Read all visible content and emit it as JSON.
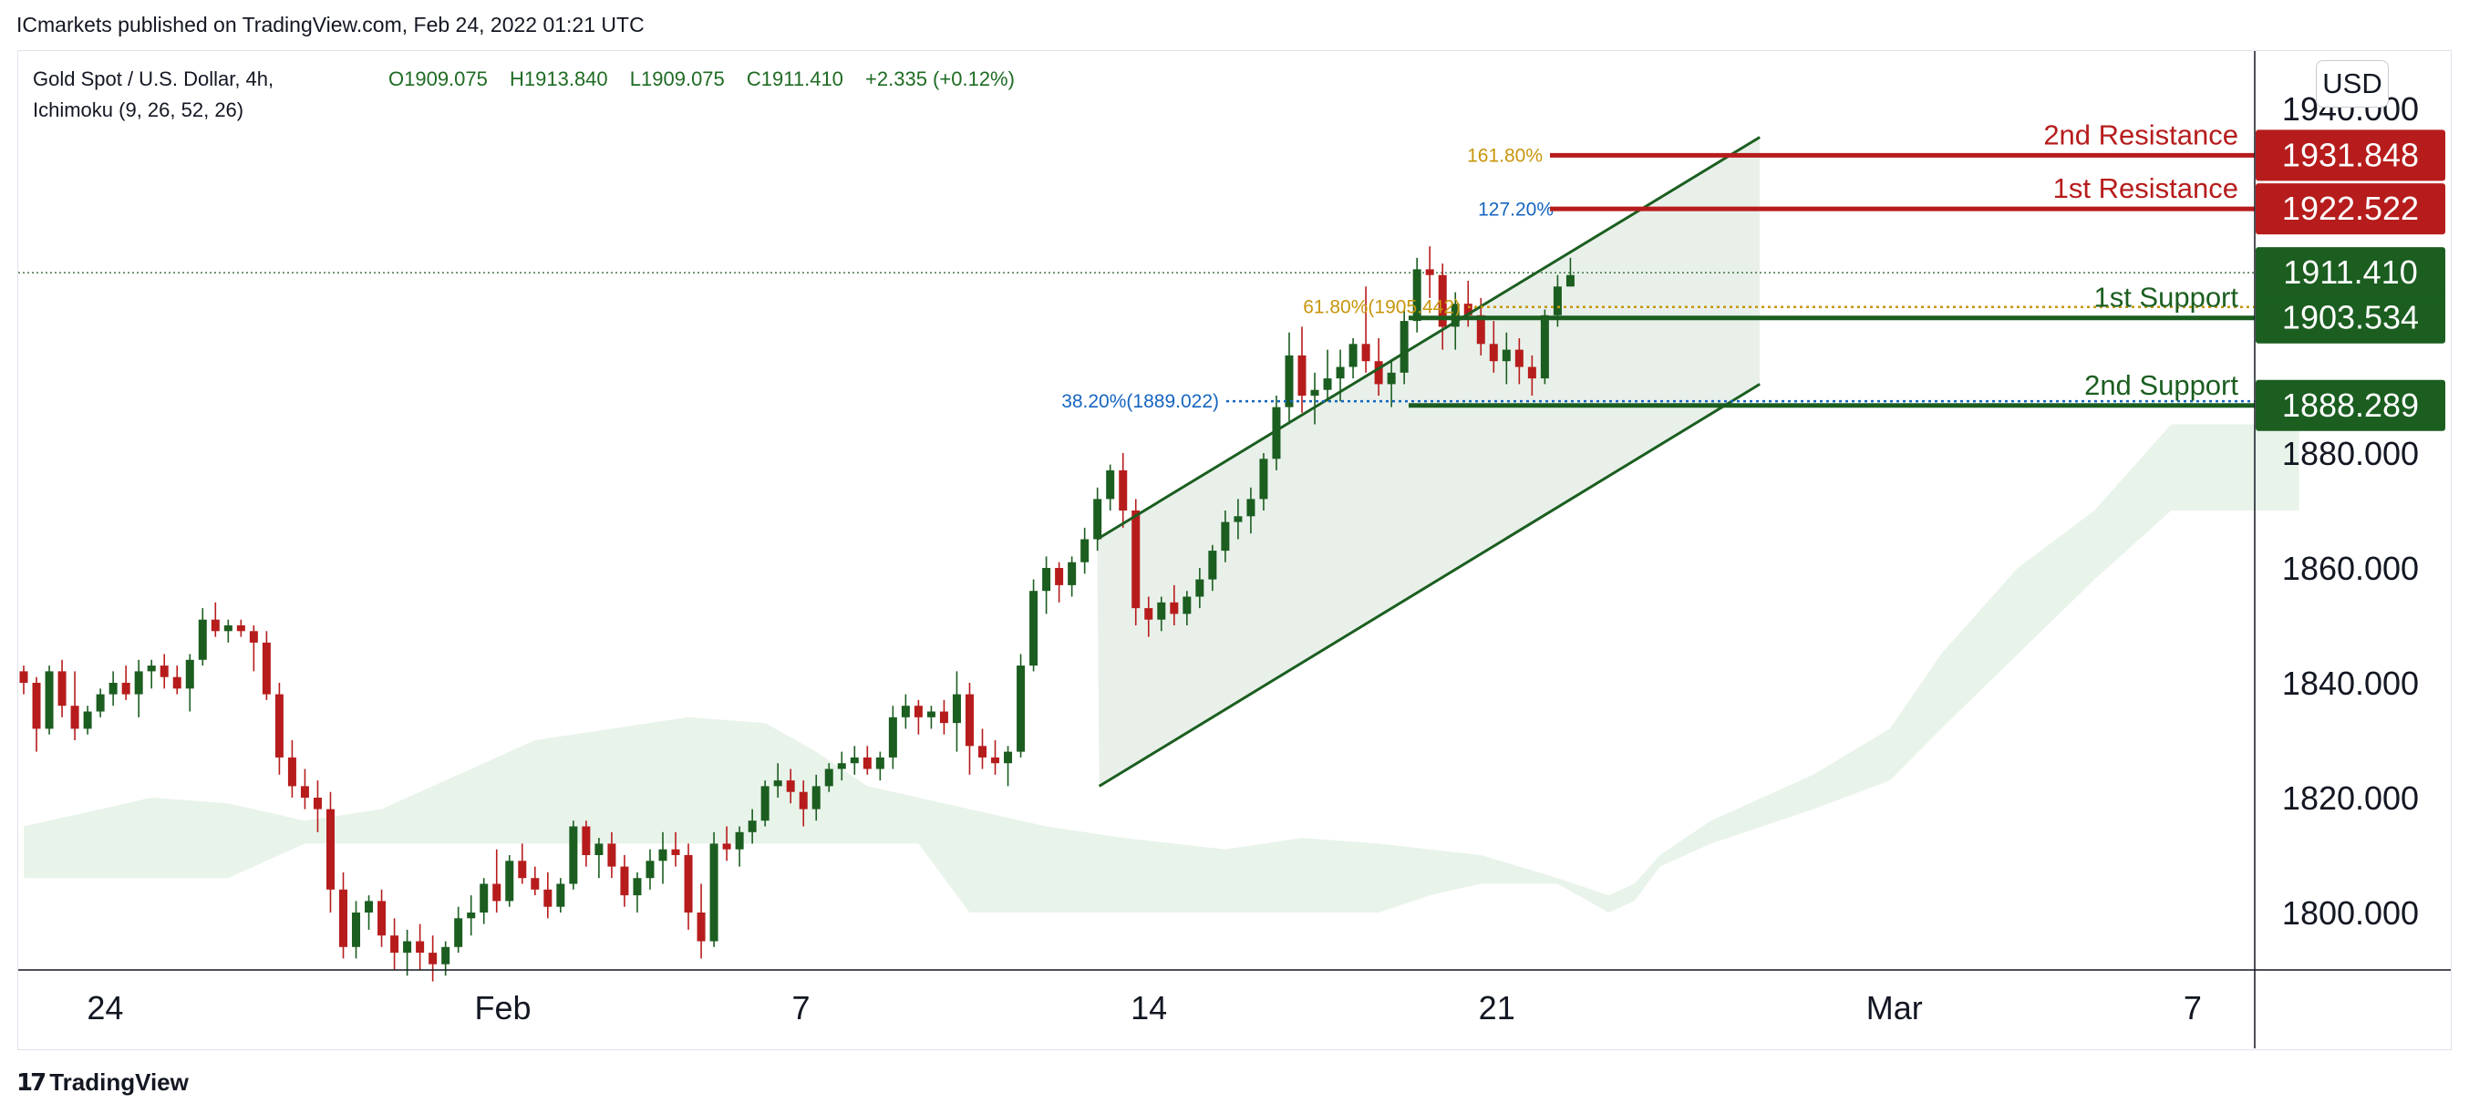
{
  "header": {
    "published": "ICmarkets published on TradingView.com, Feb 24, 2022 01:21 UTC"
  },
  "legend": {
    "symbol": "Gold Spot / U.S. Dollar, 4h,",
    "indicator": "Ichimoku (9, 26, 52, 26)",
    "ohlc": {
      "open": "O1909.075",
      "high": "H1913.840",
      "low": "L1909.075",
      "close": "C1911.410",
      "change": "+2.335 (+0.12%)"
    }
  },
  "currency_button": "USD",
  "footer": {
    "brand": "TradingView"
  },
  "colors": {
    "up": "#1b5e20",
    "down": "#b71c1c",
    "resistance": "#b71c1c",
    "support": "#1b5e20",
    "fib_gold": "#c8960c",
    "fib_blue": "#1565c0",
    "cloud_green": "#e8f3ea",
    "cloud_red": "#fbe9e9",
    "channel_fill": "#e5ede6"
  },
  "chart_data": {
    "type": "candlestick",
    "ylim": [
      1790,
      1950
    ],
    "y_ticks": [
      {
        "value": 1940,
        "label": "1940.000"
      },
      {
        "value": 1880,
        "label": "1880.000"
      },
      {
        "value": 1860,
        "label": "1860.000"
      },
      {
        "value": 1840,
        "label": "1840.000"
      },
      {
        "value": 1820,
        "label": "1820.000"
      },
      {
        "value": 1800,
        "label": "1800.000"
      }
    ],
    "x_ticks": [
      {
        "label": "24",
        "date": "2022-01-24"
      },
      {
        "label": "Feb",
        "date": "2022-02-01"
      },
      {
        "label": "7",
        "date": "2022-02-07"
      },
      {
        "label": "14",
        "date": "2022-02-14"
      },
      {
        "label": "21",
        "date": "2022-02-21"
      },
      {
        "label": "Mar",
        "date": "2022-03-01"
      },
      {
        "label": "7",
        "date": "2022-03-07"
      }
    ],
    "x_range": [
      "2022-01-22T06:00",
      "2022-03-08T06:00"
    ],
    "levels": [
      {
        "name": "2nd Resistance",
        "value": "1931.848",
        "price": 1931.848,
        "kind": "resistance"
      },
      {
        "name": "1st Resistance",
        "value": "1922.522",
        "price": 1922.522,
        "kind": "resistance"
      },
      {
        "name": "1st Support",
        "value": "1903.534",
        "price": 1903.534,
        "kind": "support"
      },
      {
        "name": "2nd Support",
        "value": "1888.289",
        "price": 1888.289,
        "kind": "support"
      }
    ],
    "last_price": {
      "value": "1911.410",
      "price": 1911.41
    },
    "fib_labels": [
      {
        "text": "161.80%",
        "price": 1931.8,
        "color": "gold"
      },
      {
        "text": "127.20%",
        "price": 1922.5,
        "color": "blue"
      },
      {
        "text": "61.80%(1905.442)",
        "price": 1905.44,
        "color": "gold"
      },
      {
        "text": "38.20%(1889.022)",
        "price": 1889.02,
        "color": "blue"
      }
    ],
    "channel": {
      "upper": [
        [
          "2022-02-12T23:00",
          1865
        ],
        [
          "2022-02-26T07:00",
          1935
        ]
      ],
      "lower": [
        [
          "2022-02-13T00:00",
          1822
        ],
        [
          "2022-02-26T07:00",
          1892
        ]
      ]
    },
    "candles": [
      [
        1842,
        1843,
        1838,
        1840
      ],
      [
        1840,
        1841,
        1828,
        1832
      ],
      [
        1832,
        1843,
        1831,
        1842
      ],
      [
        1842,
        1844,
        1834,
        1836
      ],
      [
        1836,
        1842,
        1830,
        1832
      ],
      [
        1832,
        1836,
        1831,
        1835
      ],
      [
        1835,
        1839,
        1834,
        1838
      ],
      [
        1838,
        1842,
        1836,
        1840
      ],
      [
        1840,
        1843,
        1837,
        1838
      ],
      [
        1838,
        1844,
        1834,
        1842
      ],
      [
        1842,
        1844,
        1839,
        1843
      ],
      [
        1843,
        1845,
        1839,
        1841
      ],
      [
        1841,
        1843,
        1838,
        1839
      ],
      [
        1839,
        1845,
        1835,
        1844
      ],
      [
        1844,
        1853,
        1843,
        1851
      ],
      [
        1851,
        1854,
        1848,
        1849
      ],
      [
        1849,
        1851,
        1847,
        1850
      ],
      [
        1850,
        1851,
        1848,
        1849
      ],
      [
        1849,
        1850,
        1842,
        1847
      ],
      [
        1847,
        1849,
        1837,
        1838
      ],
      [
        1838,
        1840,
        1824,
        1827
      ],
      [
        1827,
        1830,
        1820,
        1822
      ],
      [
        1822,
        1825,
        1818,
        1820
      ],
      [
        1820,
        1823,
        1814,
        1818
      ],
      [
        1818,
        1821,
        1800,
        1804
      ],
      [
        1804,
        1807,
        1792,
        1794
      ],
      [
        1794,
        1802,
        1792,
        1800
      ],
      [
        1800,
        1803,
        1797,
        1802
      ],
      [
        1802,
        1804,
        1794,
        1796
      ],
      [
        1796,
        1799,
        1790,
        1793
      ],
      [
        1793,
        1797,
        1789,
        1795
      ],
      [
        1795,
        1798,
        1790,
        1793
      ],
      [
        1793,
        1796,
        1788,
        1791
      ],
      [
        1791,
        1795,
        1789,
        1794
      ],
      [
        1794,
        1801,
        1793,
        1799
      ],
      [
        1799,
        1803,
        1796,
        1800
      ],
      [
        1800,
        1806,
        1798,
        1805
      ],
      [
        1805,
        1811,
        1800,
        1802
      ],
      [
        1802,
        1810,
        1801,
        1809
      ],
      [
        1809,
        1812,
        1805,
        1806
      ],
      [
        1806,
        1808,
        1803,
        1804
      ],
      [
        1804,
        1807,
        1799,
        1801
      ],
      [
        1801,
        1806,
        1800,
        1805
      ],
      [
        1805,
        1816,
        1804,
        1815
      ],
      [
        1815,
        1816,
        1808,
        1810
      ],
      [
        1810,
        1813,
        1806,
        1812
      ],
      [
        1812,
        1814,
        1806,
        1808
      ],
      [
        1808,
        1810,
        1801,
        1803
      ],
      [
        1803,
        1807,
        1800,
        1806
      ],
      [
        1806,
        1811,
        1804,
        1809
      ],
      [
        1809,
        1814,
        1805,
        1811
      ],
      [
        1811,
        1814,
        1808,
        1810
      ],
      [
        1810,
        1812,
        1797,
        1800
      ],
      [
        1800,
        1805,
        1792,
        1795
      ],
      [
        1795,
        1814,
        1794,
        1812
      ],
      [
        1812,
        1815,
        1809,
        1811
      ],
      [
        1811,
        1815,
        1808,
        1814
      ],
      [
        1814,
        1818,
        1812,
        1816
      ],
      [
        1816,
        1823,
        1815,
        1822
      ],
      [
        1822,
        1826,
        1820,
        1823
      ],
      [
        1823,
        1825,
        1819,
        1821
      ],
      [
        1821,
        1823,
        1815,
        1818
      ],
      [
        1818,
        1824,
        1816,
        1822
      ],
      [
        1822,
        1826,
        1821,
        1825
      ],
      [
        1825,
        1828,
        1823,
        1826
      ],
      [
        1826,
        1829,
        1824,
        1827
      ],
      [
        1827,
        1829,
        1824,
        1825
      ],
      [
        1825,
        1828,
        1823,
        1827
      ],
      [
        1827,
        1836,
        1825,
        1834
      ],
      [
        1834,
        1838,
        1832,
        1836
      ],
      [
        1836,
        1837,
        1831,
        1834
      ],
      [
        1834,
        1836,
        1832,
        1835
      ],
      [
        1835,
        1837,
        1831,
        1833
      ],
      [
        1833,
        1842,
        1828,
        1838
      ],
      [
        1838,
        1840,
        1824,
        1829
      ],
      [
        1829,
        1832,
        1825,
        1827
      ],
      [
        1827,
        1830,
        1824,
        1826
      ],
      [
        1826,
        1829,
        1822,
        1828
      ],
      [
        1828,
        1845,
        1827,
        1843
      ],
      [
        1843,
        1858,
        1842,
        1856
      ],
      [
        1856,
        1862,
        1852,
        1860
      ],
      [
        1860,
        1861,
        1854,
        1857
      ],
      [
        1857,
        1862,
        1855,
        1861
      ],
      [
        1861,
        1867,
        1859,
        1865
      ],
      [
        1865,
        1874,
        1863,
        1872
      ],
      [
        1872,
        1878,
        1870,
        1877
      ],
      [
        1877,
        1880,
        1867,
        1870
      ],
      [
        1870,
        1872,
        1850,
        1853
      ],
      [
        1853,
        1855,
        1848,
        1851
      ],
      [
        1851,
        1855,
        1849,
        1854
      ],
      [
        1854,
        1857,
        1850,
        1852
      ],
      [
        1852,
        1856,
        1850,
        1855
      ],
      [
        1855,
        1860,
        1853,
        1858
      ],
      [
        1858,
        1864,
        1856,
        1863
      ],
      [
        1863,
        1870,
        1861,
        1868
      ],
      [
        1868,
        1872,
        1865,
        1869
      ],
      [
        1869,
        1874,
        1866,
        1872
      ],
      [
        1872,
        1880,
        1870,
        1879
      ],
      [
        1879,
        1890,
        1877,
        1888
      ],
      [
        1888,
        1901,
        1885,
        1897
      ],
      [
        1897,
        1902,
        1887,
        1890
      ],
      [
        1890,
        1894,
        1885,
        1891
      ],
      [
        1891,
        1898,
        1889,
        1893
      ],
      [
        1893,
        1898,
        1889,
        1895
      ],
      [
        1895,
        1900,
        1893,
        1899
      ],
      [
        1899,
        1909,
        1894,
        1896
      ],
      [
        1896,
        1900,
        1890,
        1892
      ],
      [
        1892,
        1896,
        1888,
        1894
      ],
      [
        1894,
        1905,
        1892,
        1903
      ],
      [
        1903,
        1914,
        1901,
        1912
      ],
      [
        1912,
        1916,
        1907,
        1911
      ],
      [
        1911,
        1913,
        1898,
        1902
      ],
      [
        1902,
        1908,
        1898,
        1906
      ],
      [
        1906,
        1910,
        1902,
        1904
      ],
      [
        1904,
        1907,
        1897,
        1899
      ],
      [
        1899,
        1903,
        1894,
        1896
      ],
      [
        1896,
        1901,
        1892,
        1898
      ],
      [
        1898,
        1900,
        1892,
        1895
      ],
      [
        1895,
        1897,
        1890,
        1893
      ],
      [
        1893,
        1905,
        1892,
        1904
      ],
      [
        1904,
        1911,
        1902,
        1909
      ],
      [
        1909,
        1914,
        1909,
        1911
      ]
    ],
    "ichimoku_cloud": {
      "x": [
        0,
        6,
        10,
        16,
        22,
        28,
        34,
        40,
        46,
        52,
        58,
        62,
        66,
        70,
        74,
        80,
        86,
        90,
        94,
        100,
        106,
        110,
        114,
        120,
        124,
        126,
        128,
        132,
        136,
        140,
        146,
        150,
        156,
        162,
        168,
        178
      ],
      "span_a": [
        1815,
        1818,
        1820,
        1819,
        1816,
        1818,
        1824,
        1830,
        1832,
        1834,
        1833,
        1828,
        1822,
        1820,
        1818,
        1815,
        1813,
        1812,
        1811,
        1813,
        1812,
        1811,
        1810,
        1806,
        1803,
        1805,
        1810,
        1816,
        1820,
        1824,
        1832,
        1845,
        1860,
        1870,
        1885,
        1885
      ],
      "span_b": [
        1806,
        1806,
        1806,
        1806,
        1812,
        1812,
        1812,
        1812,
        1812,
        1812,
        1812,
        1812,
        1812,
        1812,
        1800,
        1800,
        1800,
        1800,
        1800,
        1800,
        1800,
        1803,
        1805,
        1805,
        1800,
        1802,
        1808,
        1812,
        1815,
        1818,
        1823,
        1832,
        1845,
        1858,
        1870,
        1870
      ]
    }
  }
}
